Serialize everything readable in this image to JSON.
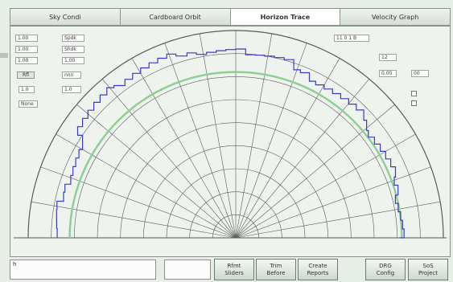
{
  "tabs": [
    {
      "label": "Sky Condi",
      "active": false
    },
    {
      "label": "Cardboard Orbit",
      "active": false
    },
    {
      "label": "Horizon Trace",
      "active": true
    },
    {
      "label": "Velocity Graph",
      "active": false
    }
  ],
  "left_panel": {
    "fields": [
      "1.00",
      "Spdk",
      "1.00",
      "Shdk",
      "1.00",
      "1.00"
    ],
    "button1": "Rfl",
    "field_a": "nnn",
    "field_b": "1.0",
    "field_c": "1.0",
    "dropdown": "None"
  },
  "right_panel": {
    "field1": "11 0 1 B",
    "field2": "12",
    "field3": "0.00",
    "field4": "00"
  },
  "colors": {
    "trace_blue": "#3a3ac8",
    "trace_green": "#8fcf96",
    "grid": "#5a5a5a",
    "background": "#eef3ee"
  },
  "bottom": {
    "status_left": "h",
    "status_right": "",
    "buttons": [
      {
        "label": "Rfmt\nSliders"
      },
      {
        "label": "Trim\nBefore"
      },
      {
        "label": "Create\nReports"
      },
      {
        "label": "DRG\nConfig"
      },
      {
        "label": "SoS\nProject"
      }
    ]
  }
}
